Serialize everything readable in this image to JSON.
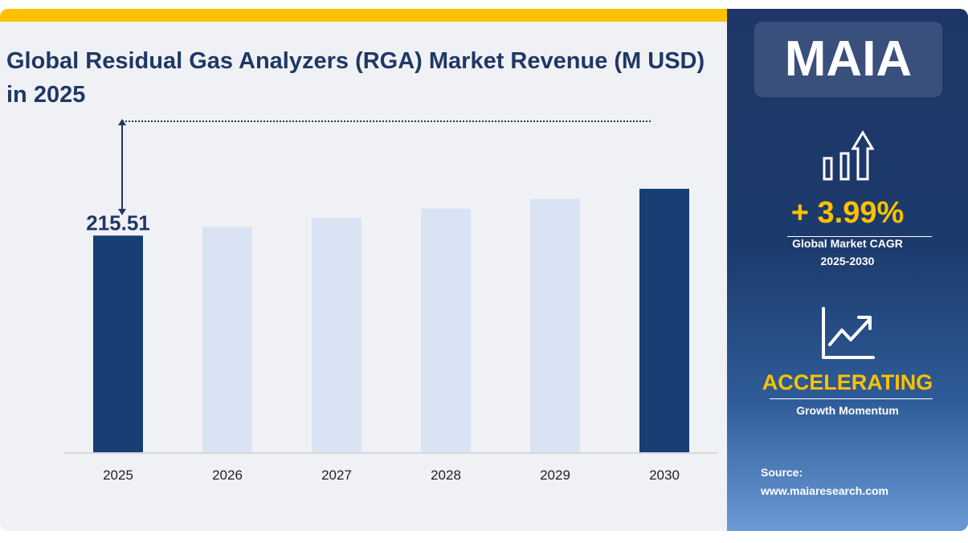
{
  "title": "Global Residual Gas Analyzers (RGA) Market Revenue (M USD) in 2025",
  "chart_data": {
    "type": "bar",
    "categories": [
      "2025",
      "2026",
      "2027",
      "2028",
      "2029",
      "2030"
    ],
    "values": [
      215.51,
      224.11,
      233.05,
      242.35,
      252.02,
      262.07
    ],
    "data_labels": [
      "215.51",
      "",
      "",
      "",
      "",
      ""
    ],
    "highlighted": [
      "2025",
      "2030"
    ],
    "ylim": [
      0,
      330
    ],
    "grid": false,
    "colors": {
      "highlight": "#173f73",
      "normal": "#dae3f3"
    }
  },
  "side": {
    "logo": "MAIA",
    "cagr_value": "+ 3.99%",
    "cagr_label": "Global Market CAGR",
    "cagr_period": "2025-2030",
    "momentum": "ACCELERATING",
    "momentum_label": "Growth Momentum",
    "source_label": "Source:",
    "source_url": "www.maiaresearch.com"
  },
  "colors": {
    "accent": "#ffc000",
    "title": "#1f3864"
  }
}
